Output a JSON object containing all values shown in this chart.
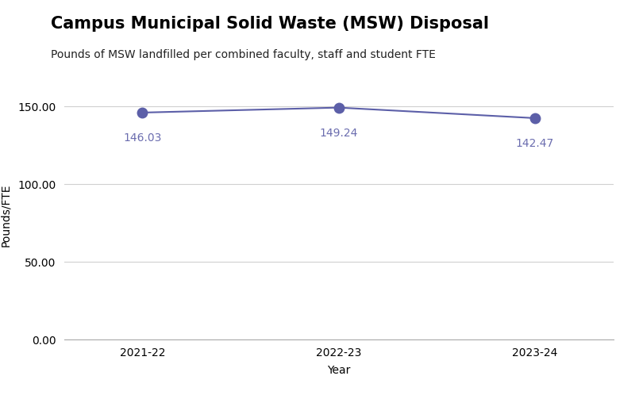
{
  "title": "Campus Municipal Solid Waste (MSW) Disposal",
  "subtitle": "Pounds of MSW landfilled per combined faculty, staff and student FTE",
  "xlabel": "Year",
  "ylabel": "Pounds/FTE",
  "categories": [
    "2021-22",
    "2022-23",
    "2023-24"
  ],
  "values": [
    146.03,
    149.24,
    142.47
  ],
  "ylim": [
    0,
    160
  ],
  "yticks": [
    0.0,
    50.0,
    100.0,
    150.0
  ],
  "line_color": "#5c5fa8",
  "marker_color": "#5c5fa8",
  "label_color": "#6b6daf",
  "background_color": "#ffffff",
  "grid_color": "#d0d0d0",
  "title_fontsize": 15,
  "subtitle_fontsize": 10,
  "axis_label_fontsize": 10,
  "tick_fontsize": 10,
  "annotation_fontsize": 10,
  "marker_size": 9,
  "line_width": 1.5
}
